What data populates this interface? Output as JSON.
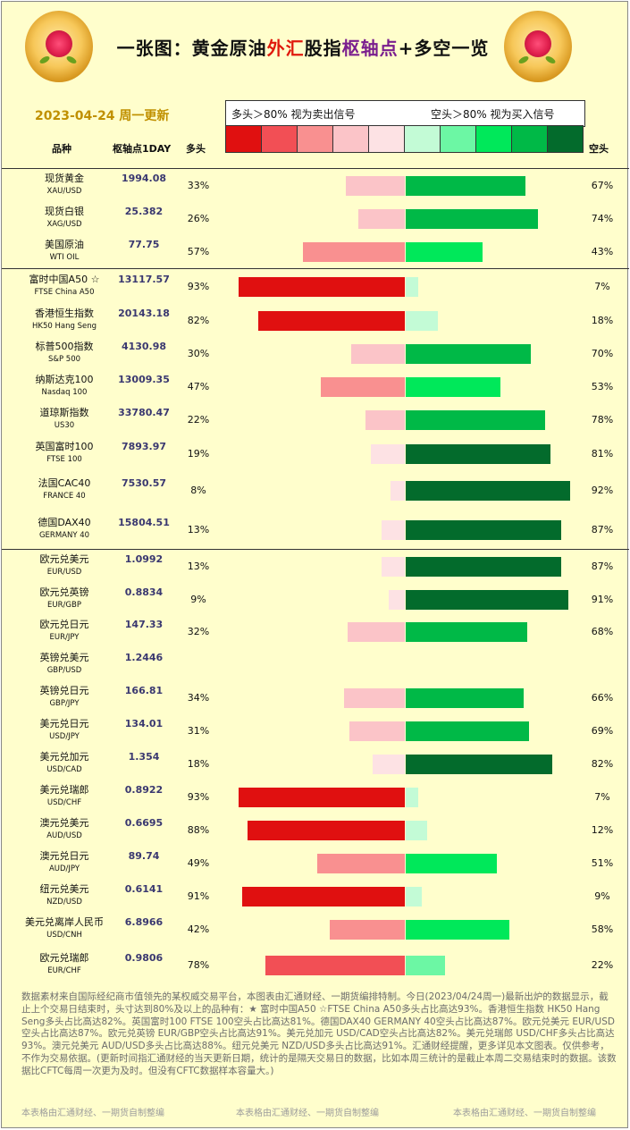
{
  "header": {
    "title_part1": "一张图：黄金原油",
    "title_part2": "外汇",
    "title_part3": "股指",
    "title_part4": "枢轴点",
    "title_part5": "+多空一览",
    "date": "2023-04-24 周一更新",
    "col_name": "品种",
    "col_pivot": "枢轴点1DAY",
    "col_long": "多头",
    "col_short": "空头",
    "legend_left": "多头＞80% 视为卖出信号",
    "legend_right": "空头＞80% 视为买入信号"
  },
  "colors": {
    "long_scale": [
      "#e01010",
      "#f24f55",
      "#f99090",
      "#fbc4c8",
      "#fde2e4"
    ],
    "short_scale": [
      "#c3fbd6",
      "#6cf7a4",
      "#00e85a",
      "#00b947",
      "#036b2c"
    ]
  },
  "chart_data": {
    "type": "bar",
    "xlabel": "",
    "ylabel": "",
    "columns": [
      "品种",
      "枢轴点1DAY",
      "多头",
      "空头"
    ],
    "rows": [
      {
        "cn": "现货黄金",
        "en": "XAU/USD",
        "pivot": "1994.08",
        "long": 33,
        "short": 67,
        "long_label": "33%",
        "short_label": "67%"
      },
      {
        "cn": "现货白银",
        "en": "XAG/USD",
        "pivot": "25.382",
        "long": 26,
        "short": 74,
        "long_label": "26%",
        "short_label": "74%"
      },
      {
        "cn": "美国原油",
        "en": "WTI OIL",
        "pivot": "77.75",
        "long": 57,
        "short": 43,
        "long_label": "57%",
        "short_label": "43%"
      },
      {
        "cn": "富时中国A50 ☆",
        "en": "FTSE China A50",
        "pivot": "13117.57",
        "long": 93,
        "short": 7,
        "long_label": "93%",
        "short_label": "7%"
      },
      {
        "cn": "香港恒生指数",
        "en": "HK50 Hang Seng",
        "pivot": "20143.18",
        "long": 82,
        "short": 18,
        "long_label": "82%",
        "short_label": "18%"
      },
      {
        "cn": "标普500指数",
        "en": "S&P 500",
        "pivot": "4130.98",
        "long": 30,
        "short": 70,
        "long_label": "30%",
        "short_label": "70%"
      },
      {
        "cn": "纳斯达克100",
        "en": "Nasdaq 100",
        "pivot": "13009.35",
        "long": 47,
        "short": 53,
        "long_label": "47%",
        "short_label": "53%"
      },
      {
        "cn": "道琼斯指数",
        "en": "US30",
        "pivot": "33780.47",
        "long": 22,
        "short": 78,
        "long_label": "22%",
        "short_label": "78%"
      },
      {
        "cn": "英国富时100",
        "en": "FTSE 100",
        "pivot": "7893.97",
        "long": 19,
        "short": 81,
        "long_label": "19%",
        "short_label": "81%"
      },
      {
        "cn": "法国CAC40",
        "en": "FRANCE 40",
        "pivot": "7530.57",
        "long": 8,
        "short": 92,
        "long_label": "8%",
        "short_label": "92%"
      },
      {
        "cn": "德国DAX40",
        "en": "GERMANY 40",
        "pivot": "15804.51",
        "long": 13,
        "short": 87,
        "long_label": "13%",
        "short_label": "87%"
      },
      {
        "cn": "欧元兑美元",
        "en": "EUR/USD",
        "pivot": "1.0992",
        "long": 13,
        "short": 87,
        "long_label": "13%",
        "short_label": "87%"
      },
      {
        "cn": "欧元兑英镑",
        "en": "EUR/GBP",
        "pivot": "0.8834",
        "long": 9,
        "short": 91,
        "long_label": "9%",
        "short_label": "91%"
      },
      {
        "cn": "欧元兑日元",
        "en": "EUR/JPY",
        "pivot": "147.33",
        "long": 32,
        "short": 68,
        "long_label": "32%",
        "short_label": "68%"
      },
      {
        "cn": "英镑兑美元",
        "en": "GBP/USD",
        "pivot": "1.2446",
        "long": null,
        "short": null,
        "long_label": "",
        "short_label": ""
      },
      {
        "cn": "英镑兑日元",
        "en": "GBP/JPY",
        "pivot": "166.81",
        "long": 34,
        "short": 66,
        "long_label": "34%",
        "short_label": "66%"
      },
      {
        "cn": "美元兑日元",
        "en": "USD/JPY",
        "pivot": "134.01",
        "long": 31,
        "short": 69,
        "long_label": "31%",
        "short_label": "69%"
      },
      {
        "cn": "美元兑加元",
        "en": "USD/CAD",
        "pivot": "1.354",
        "long": 18,
        "short": 82,
        "long_label": "18%",
        "short_label": "82%"
      },
      {
        "cn": "美元兑瑞郎",
        "en": "USD/CHF",
        "pivot": "0.8922",
        "long": 93,
        "short": 7,
        "long_label": "93%",
        "short_label": "7%"
      },
      {
        "cn": "澳元兑美元",
        "en": "AUD/USD",
        "pivot": "0.6695",
        "long": 88,
        "short": 12,
        "long_label": "88%",
        "short_label": "12%"
      },
      {
        "cn": "澳元兑日元",
        "en": "AUD/JPY",
        "pivot": "89.74",
        "long": 49,
        "short": 51,
        "long_label": "49%",
        "short_label": "51%"
      },
      {
        "cn": "纽元兑美元",
        "en": "NZD/USD",
        "pivot": "0.6141",
        "long": 91,
        "short": 9,
        "long_label": "91%",
        "short_label": "9%"
      },
      {
        "cn": "美元兑离岸人民币",
        "en": "USD/CNH",
        "pivot": "6.8966",
        "long": 42,
        "short": 58,
        "long_label": "42%",
        "short_label": "58%"
      },
      {
        "cn": "欧元兑瑞郎",
        "en": "EUR/CHF",
        "pivot": "0.9806",
        "long": 78,
        "short": 22,
        "long_label": "78%",
        "short_label": "22%"
      }
    ]
  },
  "footer": {
    "note": "数据素材来自国际经纪商市值领先的某权威交易平台，本图表由汇通财经、一期货编排特制。今日(2023/04/24周一)最新出炉的数据显示，截止上个交易日结束时，头寸达到80%及以上的品种有：★ 富时中国A50 ☆FTSE China A50多头占比高达93%。香港恒生指数 HK50 Hang Seng多头占比高达82%。英国富时100 FTSE 100空头占比高达81%。德国DAX40 GERMANY 40空头占比高达87%。欧元兑美元 EUR/USD空头占比高达87%。欧元兑英镑 EUR/GBP空头占比高达91%。美元兑加元 USD/CAD空头占比高达82%。美元兑瑞郎 USD/CHF多头占比高达93%。澳元兑美元 AUD/USD多头占比高达88%。纽元兑美元 NZD/USD多头占比高达91%。汇通财经提醒，更多详见本文图表。仅供参考，不作为交易依据。(更新时间指汇通财经的当天更新日期，统计的是隔天交易日的数据，比如本周三统计的是截止本周二交易结束时的数据。该数据比CFTC每周一次更为及时。但没有CFTC数据样本容量大。)",
    "watermark": "本表格由汇通财经、一期货自制整编"
  }
}
